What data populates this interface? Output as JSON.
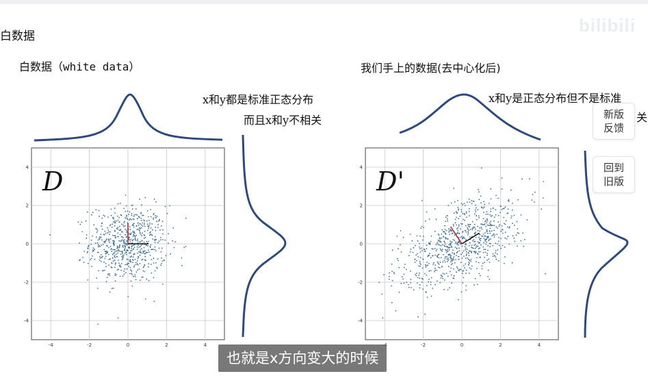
{
  "page": {
    "section_title": "白数据",
    "watermark": "bilibili",
    "subtitle": "也就是x方向变大的时候"
  },
  "left_panel": {
    "title": "白数据（white data）",
    "note_line1": "x和y都是标准正态分布",
    "note_line2": "而且x和y不相关",
    "plot_label": "D"
  },
  "right_panel": {
    "title": "我们手上的数据(去中心化后)",
    "note_line1": "x和y是正态分布但不是标准",
    "note_line2": "关",
    "plot_label": "D'"
  },
  "side_buttons": {
    "new_feedback": [
      "新版",
      "反馈"
    ],
    "back_old": [
      "回到",
      "旧版"
    ]
  },
  "colors": {
    "scatter_point": "#3b6f9a",
    "curve": "#2c4a80",
    "axis_arrow_red": "#b03030",
    "axis_arrow_black": "#111111",
    "grid": "#c8c8c8",
    "subtitle_bg": "#5a5a5a"
  },
  "chart_data": [
    {
      "type": "scatter",
      "name": "D",
      "xlim": [
        -5,
        5
      ],
      "ylim": [
        -5,
        5
      ],
      "x_ticks": [
        "-4",
        "-2",
        "0",
        "2",
        "4"
      ],
      "y_ticks": [
        "4",
        "2",
        "0",
        "-2",
        "-4"
      ],
      "grid": true,
      "distribution": "x, y ~ N(0,1), uncorrelated",
      "x_std": 1,
      "y_std": 1,
      "correlation": 0,
      "points_approx": 700
    },
    {
      "type": "scatter",
      "name": "D'",
      "xlim": [
        -5,
        5
      ],
      "ylim": [
        -5,
        5
      ],
      "x_ticks": [
        "-4",
        "-2",
        "0",
        "2",
        "4"
      ],
      "y_ticks": [
        "4",
        "2",
        "0",
        "-2",
        "-4"
      ],
      "grid": true,
      "distribution": "normal, positively correlated (stretched along diagonal)",
      "x_std": 1.6,
      "y_std": 1.2,
      "correlation": 0.55,
      "points_approx": 800
    }
  ]
}
